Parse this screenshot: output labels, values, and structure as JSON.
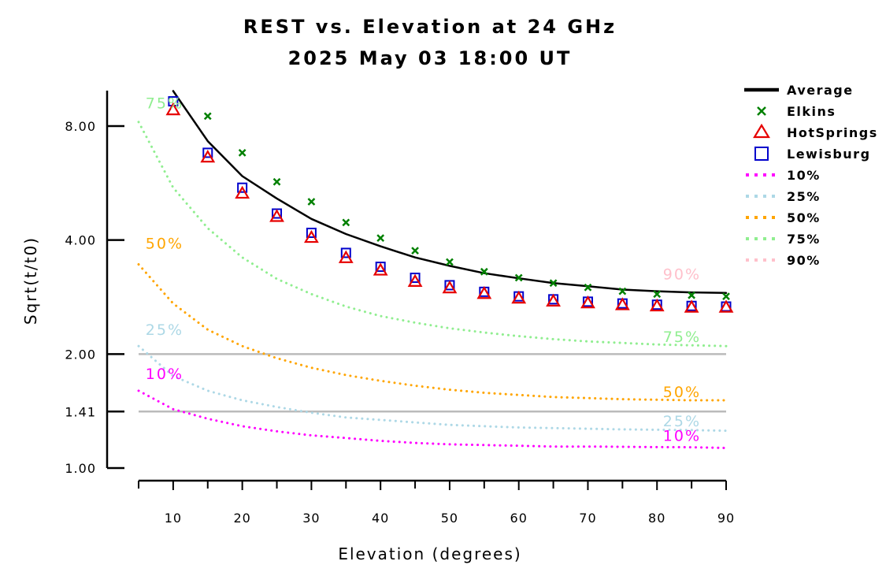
{
  "chart_data": {
    "type": "line",
    "title": "REST vs. Elevation at 24 GHz",
    "subtitle": "2025 May 03 18:00 UT",
    "xlabel": "Elevation (degrees)",
    "ylabel": "Sqrt(t/t0)",
    "xlim": [
      5,
      90
    ],
    "ylim": [
      1.0,
      10.0
    ],
    "y_scale": "log",
    "x_ticks": [
      10,
      20,
      30,
      40,
      50,
      60,
      70,
      80,
      90
    ],
    "y_ticks": [
      {
        "value": 1.0,
        "label": "1.00"
      },
      {
        "value": 1.41,
        "label": "1.41"
      },
      {
        "value": 2.0,
        "label": "2.00"
      },
      {
        "value": 4.0,
        "label": "4.00"
      },
      {
        "value": 8.0,
        "label": "8.00"
      }
    ],
    "reference_lines": [
      1.41,
      2.0
    ],
    "legend_position": "right",
    "series": [
      {
        "name": "Average",
        "kind": "line",
        "style": "solid",
        "color": "#000000",
        "x": [
          10,
          15,
          20,
          25,
          30,
          35,
          40,
          45,
          50,
          55,
          60,
          65,
          70,
          75,
          80,
          85,
          90
        ],
        "y": [
          9.9,
          7.3,
          5.9,
          5.15,
          4.55,
          4.15,
          3.85,
          3.6,
          3.42,
          3.27,
          3.17,
          3.08,
          3.02,
          2.96,
          2.93,
          2.91,
          2.9
        ]
      },
      {
        "name": "Elkins",
        "kind": "marker",
        "marker": "x",
        "color": "#008000",
        "x": [
          15,
          20,
          25,
          30,
          35,
          40,
          45,
          50,
          55,
          60,
          65,
          70,
          75,
          80,
          85,
          90
        ],
        "y": [
          8.5,
          6.8,
          5.7,
          5.05,
          4.45,
          4.05,
          3.75,
          3.5,
          3.3,
          3.18,
          3.08,
          3.0,
          2.93,
          2.88,
          2.86,
          2.84
        ]
      },
      {
        "name": "HotSprings",
        "kind": "marker",
        "marker": "triangle",
        "color": "#e60000",
        "x": [
          10,
          15,
          20,
          25,
          30,
          35,
          40,
          45,
          50,
          55,
          60,
          65,
          70,
          75,
          80,
          85,
          90
        ],
        "y": [
          8.8,
          6.6,
          5.3,
          4.6,
          4.05,
          3.58,
          3.32,
          3.1,
          2.98,
          2.88,
          2.8,
          2.75,
          2.72,
          2.69,
          2.67,
          2.65,
          2.65
        ]
      },
      {
        "name": "Lewisburg",
        "kind": "marker",
        "marker": "square",
        "color": "#0000cc",
        "x": [
          10,
          15,
          20,
          25,
          30,
          35,
          40,
          45,
          50,
          55,
          60,
          65,
          70,
          75,
          80,
          85,
          90
        ],
        "y": [
          9.3,
          6.8,
          5.5,
          4.7,
          4.18,
          3.7,
          3.4,
          3.18,
          3.04,
          2.92,
          2.84,
          2.79,
          2.75,
          2.72,
          2.7,
          2.68,
          2.67
        ]
      },
      {
        "name": "10%",
        "kind": "line",
        "style": "dotted",
        "color": "#ff00ff",
        "label": "10%",
        "x": [
          5,
          10,
          15,
          20,
          25,
          30,
          35,
          40,
          45,
          50,
          55,
          60,
          65,
          70,
          75,
          80,
          85,
          90
        ],
        "y": [
          1.6,
          1.43,
          1.35,
          1.29,
          1.25,
          1.22,
          1.2,
          1.18,
          1.165,
          1.155,
          1.15,
          1.145,
          1.14,
          1.14,
          1.138,
          1.136,
          1.135,
          1.13
        ]
      },
      {
        "name": "25%",
        "kind": "line",
        "style": "dotted",
        "color": "#add8e6",
        "label": "25%",
        "x": [
          5,
          10,
          15,
          20,
          25,
          30,
          35,
          40,
          45,
          50,
          55,
          60,
          65,
          70,
          75,
          80,
          85,
          90
        ],
        "y": [
          2.1,
          1.75,
          1.6,
          1.51,
          1.45,
          1.4,
          1.36,
          1.34,
          1.32,
          1.3,
          1.29,
          1.28,
          1.275,
          1.27,
          1.265,
          1.262,
          1.26,
          1.255
        ]
      },
      {
        "name": "50%",
        "kind": "line",
        "style": "dotted",
        "color": "#ffa500",
        "label": "50%",
        "x": [
          5,
          10,
          15,
          20,
          25,
          30,
          35,
          40,
          45,
          50,
          55,
          60,
          65,
          70,
          75,
          80,
          85,
          90
        ],
        "y": [
          3.45,
          2.72,
          2.32,
          2.1,
          1.95,
          1.84,
          1.76,
          1.7,
          1.65,
          1.61,
          1.58,
          1.56,
          1.54,
          1.53,
          1.52,
          1.515,
          1.51,
          1.51
        ]
      },
      {
        "name": "75%",
        "kind": "line",
        "style": "dotted",
        "color": "#90ee90",
        "label": "75%",
        "x": [
          5,
          10,
          15,
          20,
          25,
          30,
          35,
          40,
          45,
          50,
          55,
          60,
          65,
          70,
          75,
          80,
          85,
          90
        ],
        "y": [
          8.2,
          5.5,
          4.3,
          3.6,
          3.16,
          2.88,
          2.67,
          2.52,
          2.42,
          2.34,
          2.28,
          2.23,
          2.19,
          2.16,
          2.14,
          2.12,
          2.11,
          2.1
        ]
      },
      {
        "name": "90%",
        "kind": "line",
        "style": "dotted",
        "color": "#ffc0cb",
        "label": "90%",
        "x": [],
        "y": []
      }
    ],
    "curve_labels": [
      {
        "text": "75%",
        "x": 6,
        "y": 8.9,
        "color": "#90ee90"
      },
      {
        "text": "50%",
        "x": 6,
        "y": 3.8,
        "color": "#ffa500"
      },
      {
        "text": "25%",
        "x": 6,
        "y": 2.25,
        "color": "#add8e6"
      },
      {
        "text": "10%",
        "x": 6,
        "y": 1.72,
        "color": "#ff00ff"
      },
      {
        "text": "90%",
        "x": 82,
        "y": 3.15,
        "color": "#ffc0cb"
      },
      {
        "text": "75%",
        "x": 82,
        "y": 2.15,
        "color": "#90ee90"
      },
      {
        "text": "50%",
        "x": 82,
        "y": 1.54,
        "color": "#ffa500"
      },
      {
        "text": "25%",
        "x": 82,
        "y": 1.29,
        "color": "#add8e6"
      },
      {
        "text": "10%",
        "x": 82,
        "y": 1.18,
        "color": "#ff00ff"
      }
    ]
  }
}
